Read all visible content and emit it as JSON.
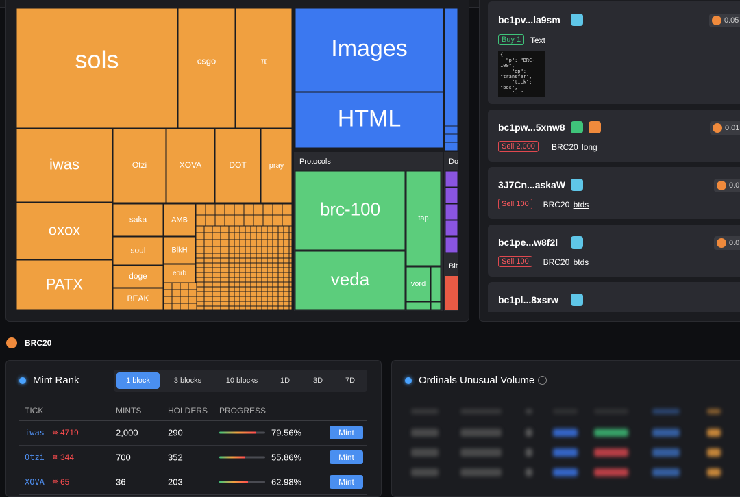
{
  "treemap": {
    "cells": [
      {
        "label": "sols"
      },
      {
        "label": "csgo"
      },
      {
        "label": "π"
      },
      {
        "label": "iwas"
      },
      {
        "label": "Otzi"
      },
      {
        "label": "XOVA"
      },
      {
        "label": "DOT"
      },
      {
        "label": "pray"
      },
      {
        "label": "oxox"
      },
      {
        "label": "PATX"
      },
      {
        "label": "saka"
      },
      {
        "label": "AMB"
      },
      {
        "label": "soul"
      },
      {
        "label": "BlkH"
      },
      {
        "label": "doge"
      },
      {
        "label": "eorb"
      },
      {
        "label": "BEAK"
      },
      {
        "label": "Images"
      },
      {
        "label": "HTML"
      },
      {
        "label": "brc-100"
      },
      {
        "label": "tap"
      },
      {
        "label": "veda"
      },
      {
        "label": "vord"
      }
    ],
    "groups": [
      "Protocols",
      "Do",
      "Bit"
    ]
  },
  "feed": [
    {
      "address": "bc1pv...la9sm",
      "price": "0.05",
      "tag": "Buy 1",
      "type": "Text",
      "code": "{\n  \"p\": \"BRC-\n100\",\n    \"op\":\n\"transfer\",\n    \"tick\":\n\"bos\",\n    \"..\""
    },
    {
      "address": "bc1pw...5xnw8",
      "price": "0.01",
      "tag": "Sell 2,000",
      "type": "BRC20",
      "link": "long"
    },
    {
      "address": "3J7Cn...askaW",
      "price": "0.0",
      "tag": "Sell 100",
      "type": "BRC20",
      "link": "btds"
    },
    {
      "address": "bc1pe...w8f2l",
      "price": "0.0",
      "tag": "Sell 100",
      "type": "BRC20",
      "link": "btds"
    },
    {
      "address": "bc1pl...8xsrw"
    }
  ],
  "section": "BRC20",
  "mint_rank": {
    "title": "Mint Rank",
    "tabs": [
      "1 block",
      "3 blocks",
      "10 blocks",
      "1D",
      "3D",
      "7D"
    ],
    "columns": [
      "TICK",
      "MINTS",
      "HOLDERS",
      "PROGRESS"
    ],
    "rows": [
      {
        "tick": "iwas",
        "hot": "4719",
        "mints": "2,000",
        "holders": "290",
        "progress": "79.56%",
        "action": "Mint"
      },
      {
        "tick": "Otzi",
        "hot": "344",
        "mints": "700",
        "holders": "352",
        "progress": "55.86%",
        "action": "Mint"
      },
      {
        "tick": "XOVA",
        "hot": "65",
        "mints": "36",
        "holders": "203",
        "progress": "62.98%",
        "action": "Mint"
      }
    ]
  },
  "unusual_volume": {
    "title": "Ordinals Unusual Volume"
  }
}
